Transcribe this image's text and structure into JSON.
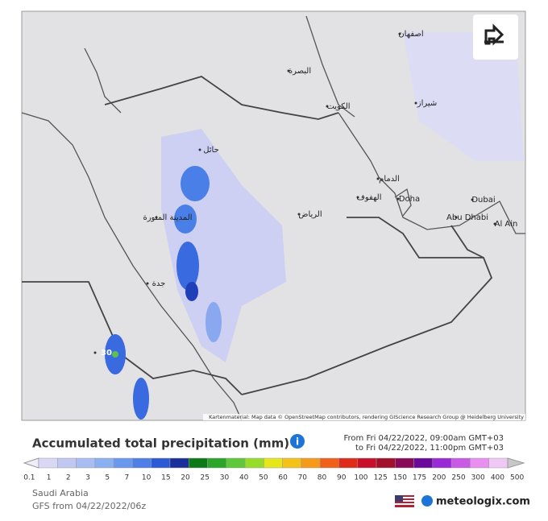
{
  "map": {
    "labels": [
      "حائل",
      "المدينة المنورة",
      "الرياض",
      "جدة",
      "الكويت",
      "Doha",
      "Dubai",
      "Abu Dhabi",
      "Al Ain",
      "30",
      "البصرة",
      "شيراز",
      "اصفهان",
      "الدمام",
      "الهفوف"
    ],
    "attribution": "Kartenmaterial: Map data © OpenStreetMap contributors, rendering GIScience Research Group @ Heidelberg University"
  },
  "legend": {
    "title": "Accumulated total precipitation (mm)",
    "from": "From Fri 04/22/2022, 09:00am GMT+03",
    "to": "to Fri 04/22/2022, 11:00pm GMT+03",
    "ticks": [
      "0.1",
      "1",
      "2",
      "3",
      "5",
      "7",
      "10",
      "15",
      "20",
      "25",
      "30",
      "40",
      "50",
      "60",
      "70",
      "80",
      "90",
      "100",
      "125",
      "150",
      "175",
      "200",
      "250",
      "300",
      "400",
      "500"
    ]
  },
  "footer": {
    "region": "Saudi Arabia",
    "model": "GFS from 04/22/2022/06z",
    "brand": "meteologix.com"
  }
}
